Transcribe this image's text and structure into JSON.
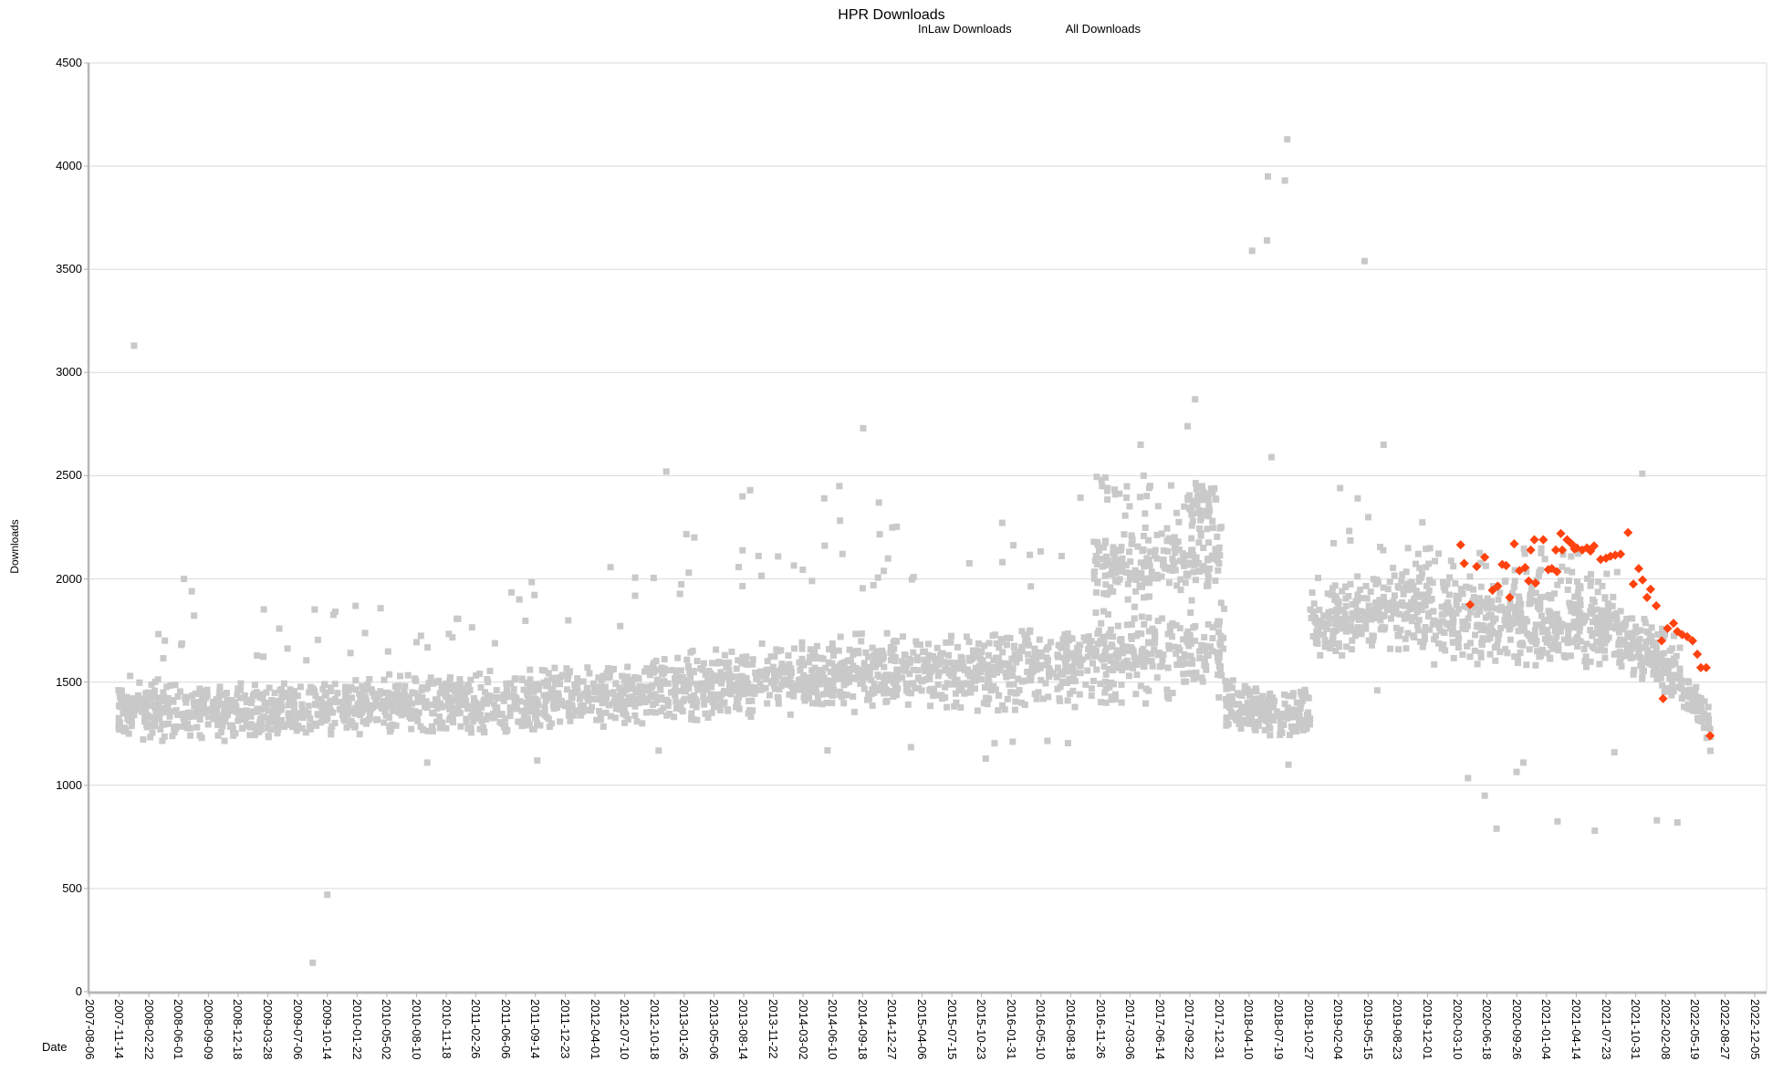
{
  "chart_data": {
    "type": "scatter",
    "title": "HPR Downloads",
    "xlabel": "Date",
    "ylabel": "Downloads",
    "ylim": [
      0,
      4500
    ],
    "y_ticks": [
      0,
      500,
      1000,
      1500,
      2000,
      2500,
      3000,
      3500,
      4000,
      4500
    ],
    "x_start": "2007-08-06",
    "x_end": "2022-12-05",
    "x_range_days": 5600,
    "x_tick_interval_days": 100,
    "x_tick_labels": [
      "2007-08-06",
      "2007-11-14",
      "2008-02-22",
      "2008-06-01",
      "2008-09-09",
      "2008-12-18",
      "2009-03-28",
      "2009-07-06",
      "2009-10-14",
      "2010-01-22",
      "2010-05-02",
      "2010-08-10",
      "2010-11-18",
      "2011-02-26",
      "2011-06-06",
      "2011-09-14",
      "2011-12-23",
      "2012-04-01",
      "2012-07-10",
      "2012-10-18",
      "2013-01-26",
      "2013-05-06",
      "2013-08-14",
      "2013-11-22",
      "2014-03-02",
      "2014-06-10",
      "2014-09-18",
      "2014-12-27",
      "2015-04-06",
      "2015-07-15",
      "2015-10-23",
      "2016-01-31",
      "2016-05-10",
      "2016-08-18",
      "2016-11-26",
      "2017-03-06",
      "2017-06-14",
      "2017-09-22",
      "2017-12-31",
      "2018-04-10",
      "2018-07-19",
      "2018-10-27",
      "2019-02-04",
      "2019-05-15",
      "2019-08-23",
      "2019-12-01",
      "2020-03-10",
      "2020-06-18",
      "2020-09-26",
      "2021-01-04",
      "2021-04-14",
      "2021-07-23",
      "2021-10-31",
      "2022-02-08",
      "2022-05-19",
      "2022-08-27",
      "2022-12-05"
    ],
    "grid": "horizontal-only",
    "colors": {
      "gridline": "#d9d9d9",
      "axis": "#b8b8b8",
      "tick": "#b3b3b3",
      "text": "#000000"
    },
    "legend": {
      "position": "top",
      "items": [
        {
          "label": "InLaw Downloads",
          "marker": "diamond",
          "color": "#ff420e"
        },
        {
          "label": "All Downloads",
          "marker": "square",
          "color": "#c9c9c9"
        }
      ]
    },
    "series": [
      {
        "name": "All Downloads",
        "marker": "square",
        "color": "#c9c9c9",
        "marker_px": 7,
        "seed": 20,
        "clusters": [
          [
            "2007-11-10",
            "2008-06-01",
            150,
            1380,
            1360,
            320
          ],
          [
            "2008-06-01",
            "2009-10-01",
            300,
            1355,
            1370,
            300
          ],
          [
            "2009-10-01",
            "2011-06-01",
            370,
            1380,
            1400,
            320
          ],
          [
            "2011-06-01",
            "2012-10-01",
            300,
            1400,
            1450,
            340
          ],
          [
            "2012-10-01",
            "2014-03-01",
            330,
            1460,
            1520,
            380
          ],
          [
            "2014-03-01",
            "2015-06-01",
            300,
            1530,
            1560,
            400
          ],
          [
            "2015-06-01",
            "2016-09-01",
            300,
            1550,
            1580,
            420
          ],
          [
            "2016-09-01",
            "2018-01-20",
            260,
            1600,
            1650,
            500
          ],
          [
            "2016-11-01",
            "2018-01-10",
            200,
            2050,
            2100,
            440
          ],
          [
            "2017-09-15",
            "2017-12-20",
            40,
            2350,
            2400,
            200
          ],
          [
            "2018-01-20",
            "2018-11-01",
            180,
            1400,
            1330,
            280
          ],
          [
            "2018-11-01",
            "2019-12-15",
            270,
            1780,
            1880,
            440
          ],
          [
            "2019-12-15",
            "2021-09-01",
            440,
            1790,
            1780,
            440
          ],
          [
            "2021-09-01",
            "2022-04-01",
            170,
            1720,
            1560,
            340
          ],
          [
            "2022-04-01",
            "2022-07-10",
            70,
            1480,
            1300,
            220
          ]
        ],
        "strays": [
          [
            "2007-12-01",
            "2009-10-01",
            14,
            1600,
            1900
          ],
          [
            "2009-10-01",
            "2011-06-01",
            16,
            1640,
            1890
          ],
          [
            "2011-06-01",
            "2012-10-01",
            10,
            1700,
            2080
          ],
          [
            "2011-09-01",
            "2016-09-01",
            8,
            1120,
            1220
          ],
          [
            "2012-10-01",
            "2014-03-01",
            14,
            1900,
            2250
          ],
          [
            "2014-03-01",
            "2016-09-01",
            22,
            1950,
            2320
          ],
          [
            "2016-10-01",
            "2018-01-15",
            26,
            2100,
            2450
          ],
          [
            "2016-09-15",
            "2018-01-15",
            12,
            2380,
            2520
          ],
          [
            "2018-11-01",
            "2019-12-15",
            12,
            2050,
            2300
          ],
          [
            "2019-12-15",
            "2021-09-01",
            40,
            1950,
            2150
          ]
        ],
        "outliers": [
          [
            "2008-01-03",
            3130
          ],
          [
            "2008-06-19",
            2000
          ],
          [
            "2008-07-15",
            1940
          ],
          [
            "2009-08-26",
            140
          ],
          [
            "2009-10-14",
            470
          ],
          [
            "2010-09-15",
            1110
          ],
          [
            "2011-09-20",
            1120
          ],
          [
            "2012-11-27",
            2520
          ],
          [
            "2013-08-10",
            2400
          ],
          [
            "2013-09-05",
            2430
          ],
          [
            "2014-05-12",
            2390
          ],
          [
            "2014-07-02",
            2450
          ],
          [
            "2014-09-20",
            2730
          ],
          [
            "2014-11-12",
            2370
          ],
          [
            "2016-12-20",
            2440
          ],
          [
            "2017-04-10",
            2650
          ],
          [
            "2017-04-20",
            2500
          ],
          [
            "2017-09-15",
            2740
          ],
          [
            "2017-10-10",
            2870
          ],
          [
            "2018-04-20",
            3590
          ],
          [
            "2018-06-09",
            3640
          ],
          [
            "2018-06-12",
            3950
          ],
          [
            "2018-06-24",
            2590
          ],
          [
            "2018-08-08",
            3930
          ],
          [
            "2018-08-16",
            4130
          ],
          [
            "2018-08-20",
            1100
          ],
          [
            "2019-02-10",
            2440
          ],
          [
            "2019-04-10",
            2390
          ],
          [
            "2019-05-03",
            3540
          ],
          [
            "2019-06-15",
            1460
          ],
          [
            "2019-07-06",
            2650
          ],
          [
            "2020-04-15",
            1035
          ],
          [
            "2020-06-10",
            950
          ],
          [
            "2020-07-20",
            790
          ],
          [
            "2020-09-25",
            1065
          ],
          [
            "2020-10-18",
            1110
          ],
          [
            "2021-02-10",
            825
          ],
          [
            "2021-06-15",
            780
          ],
          [
            "2021-08-20",
            1160
          ],
          [
            "2021-11-22",
            2510
          ],
          [
            "2022-01-10",
            830
          ],
          [
            "2022-03-20",
            820
          ],
          [
            "2022-07-09",
            1167
          ]
        ]
      },
      {
        "name": "InLaw Downloads",
        "marker": "diamond",
        "color": "#ff420e",
        "marker_px": 10,
        "points": [
          [
            "2020-03-21",
            2165
          ],
          [
            "2020-04-02",
            2075
          ],
          [
            "2020-04-22",
            1875
          ],
          [
            "2020-05-14",
            2060
          ],
          [
            "2020-06-10",
            2105
          ],
          [
            "2020-07-06",
            1945
          ],
          [
            "2020-07-24",
            1965
          ],
          [
            "2020-08-08",
            2070
          ],
          [
            "2020-08-21",
            2065
          ],
          [
            "2020-09-02",
            1910
          ],
          [
            "2020-09-17",
            2170
          ],
          [
            "2020-10-05",
            2040
          ],
          [
            "2020-10-24",
            2055
          ],
          [
            "2020-11-05",
            1990
          ],
          [
            "2020-11-12",
            2140
          ],
          [
            "2020-11-24",
            2190
          ],
          [
            "2020-11-28",
            1980
          ],
          [
            "2020-12-24",
            2190
          ],
          [
            "2021-01-10",
            2045
          ],
          [
            "2021-01-22",
            2050
          ],
          [
            "2021-02-04",
            2140
          ],
          [
            "2021-02-08",
            2035
          ],
          [
            "2021-02-21",
            2220
          ],
          [
            "2021-02-26",
            2140
          ],
          [
            "2021-03-14",
            2190
          ],
          [
            "2021-03-29",
            2170
          ],
          [
            "2021-04-08",
            2145
          ],
          [
            "2021-04-16",
            2150
          ],
          [
            "2021-05-04",
            2140
          ],
          [
            "2021-05-20",
            2150
          ],
          [
            "2021-06-01",
            2135
          ],
          [
            "2021-06-13",
            2160
          ],
          [
            "2021-07-05",
            2095
          ],
          [
            "2021-07-23",
            2100
          ],
          [
            "2021-08-07",
            2110
          ],
          [
            "2021-08-23",
            2115
          ],
          [
            "2021-09-10",
            2120
          ],
          [
            "2021-10-05",
            2225
          ],
          [
            "2021-10-23",
            1975
          ],
          [
            "2021-11-10",
            2050
          ],
          [
            "2021-11-23",
            1995
          ],
          [
            "2021-12-08",
            1910
          ],
          [
            "2021-12-20",
            1950
          ],
          [
            "2022-01-08",
            1870
          ],
          [
            "2022-01-26",
            1700
          ],
          [
            "2022-01-31",
            1420
          ],
          [
            "2022-02-15",
            1760
          ],
          [
            "2022-03-07",
            1785
          ],
          [
            "2022-03-20",
            1745
          ],
          [
            "2022-04-05",
            1730
          ],
          [
            "2022-04-22",
            1720
          ],
          [
            "2022-05-10",
            1700
          ],
          [
            "2022-05-26",
            1635
          ],
          [
            "2022-06-07",
            1570
          ],
          [
            "2022-06-25",
            1570
          ],
          [
            "2022-07-08",
            1240
          ]
        ]
      }
    ]
  }
}
